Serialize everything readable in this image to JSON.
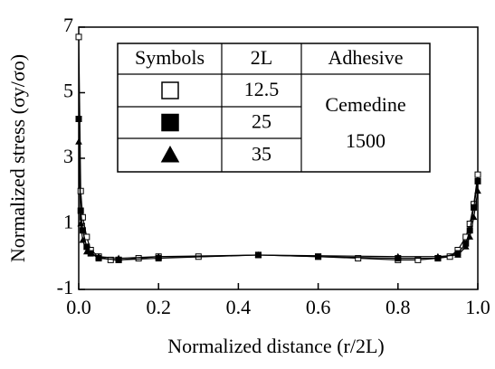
{
  "chart_data": {
    "type": "line",
    "x_label": "Normalized distance (r/2L)",
    "y_label": "Normalized stress (σy/σo)",
    "xlim": [
      0,
      1
    ],
    "ylim": [
      -1,
      7
    ],
    "xticks": [
      {
        "value": 0,
        "label": "0.0"
      },
      0.2,
      0.4,
      0.6,
      0.8,
      {
        "value": 1,
        "label": "1.0"
      }
    ],
    "yticks": [
      -1,
      1,
      3,
      5,
      7
    ],
    "legend_headers": [
      "Symbols",
      "2L",
      "Adhesive"
    ],
    "adhesive": [
      "Cemedine",
      "1500"
    ],
    "series": [
      {
        "name": "12.5",
        "color": "#000000",
        "marker": "square-open",
        "x": [
          0,
          0.005,
          0.01,
          0.02,
          0.03,
          0.05,
          0.08,
          0.1,
          0.15,
          0.2,
          0.3,
          0.45,
          0.6,
          0.7,
          0.8,
          0.85,
          0.9,
          0.93,
          0.95,
          0.97,
          0.98,
          0.99,
          1.0
        ],
        "values": [
          6.7,
          2.0,
          1.2,
          0.6,
          0.2,
          0.0,
          -0.1,
          -0.1,
          -0.05,
          0,
          0,
          0.05,
          0,
          -0.05,
          -0.1,
          -0.1,
          -0.05,
          0,
          0.2,
          0.6,
          1.0,
          1.6,
          2.5
        ]
      },
      {
        "name": "25",
        "color": "#000000",
        "marker": "square-filled",
        "x": [
          0,
          0.005,
          0.01,
          0.02,
          0.03,
          0.05,
          0.1,
          0.2,
          0.45,
          0.6,
          0.8,
          0.9,
          0.95,
          0.97,
          0.98,
          0.99,
          1.0
        ],
        "values": [
          4.2,
          1.4,
          0.8,
          0.3,
          0.1,
          -0.05,
          -0.1,
          -0.05,
          0.05,
          0,
          -0.05,
          -0.05,
          0.1,
          0.4,
          0.8,
          1.5,
          2.3
        ]
      },
      {
        "name": "35",
        "color": "#000000",
        "marker": "triangle-filled",
        "x": [
          0,
          0.005,
          0.01,
          0.02,
          0.05,
          0.1,
          0.2,
          0.45,
          0.8,
          0.9,
          0.95,
          0.97,
          0.98,
          0.99,
          1.0
        ],
        "values": [
          3.5,
          1.0,
          0.5,
          0.15,
          0,
          -0.05,
          0,
          0.05,
          0,
          0,
          0.05,
          0.3,
          0.6,
          1.2,
          2.0
        ]
      }
    ]
  }
}
